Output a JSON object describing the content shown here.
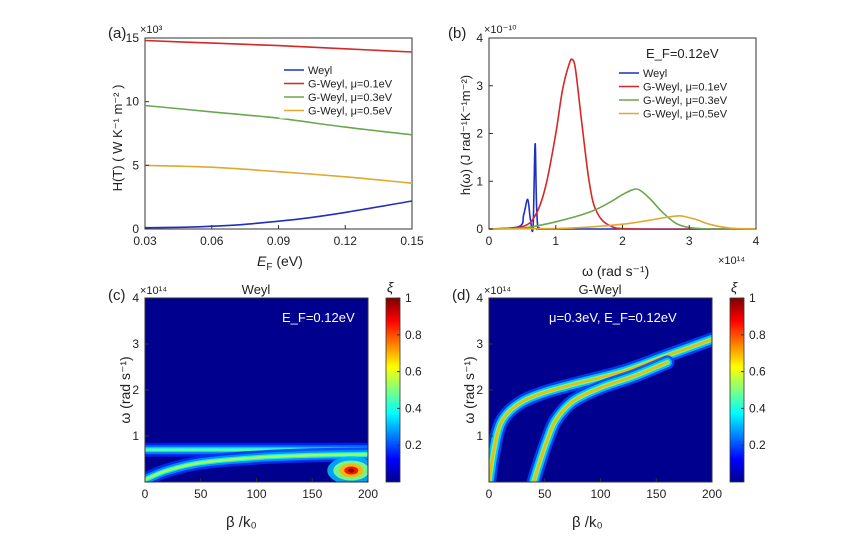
{
  "chart_data": [
    {
      "type": "line",
      "panel_label": "(a)",
      "y_exponent": "×10³",
      "xlabel_main": "E",
      "xlabel_sub": "F",
      "xlabel_rest": " (eV)",
      "ylabel": "H(T)  ( W K⁻¹ m⁻² )",
      "xlim": [
        0.03,
        0.15
      ],
      "ylim": [
        0,
        15
      ],
      "xticks": [
        "0.03",
        "0.06",
        "0.09",
        "0.12",
        "0.15"
      ],
      "yticks": [
        "0",
        "5",
        "10",
        "15"
      ],
      "legend_position": "top-right",
      "series": [
        {
          "name": "Weyl",
          "color": "#1f2fbf",
          "x": [
            0.03,
            0.05,
            0.07,
            0.08,
            0.1,
            0.12,
            0.15
          ],
          "y": [
            0.1,
            0.15,
            0.3,
            0.45,
            0.8,
            1.3,
            2.2
          ]
        },
        {
          "name": "G-Weyl, μ=0.1eV",
          "color": "#d62728",
          "x": [
            0.03,
            0.06,
            0.09,
            0.12,
            0.15
          ],
          "y": [
            14.8,
            14.6,
            14.4,
            14.15,
            13.9
          ]
        },
        {
          "name": "G-Weyl, μ=0.3eV",
          "color": "#6aa84f",
          "x": [
            0.03,
            0.06,
            0.09,
            0.12,
            0.15
          ],
          "y": [
            9.7,
            9.2,
            8.7,
            8.0,
            7.4
          ]
        },
        {
          "name": "G-Weyl, μ=0.5eV",
          "color": "#e0a830",
          "x": [
            0.03,
            0.06,
            0.09,
            0.12,
            0.15
          ],
          "y": [
            5.0,
            4.85,
            4.5,
            4.1,
            3.6
          ]
        }
      ]
    },
    {
      "type": "line",
      "panel_label": "(b)",
      "y_exponent": "×10⁻¹⁰",
      "x_exponent": "×10¹⁴",
      "xlabel": "ω (rad s⁻¹)",
      "ylabel": "h(ω)  (J rad⁻¹K⁻¹m⁻²)",
      "annotation": "E_F=0.12eV",
      "xlim": [
        0,
        4
      ],
      "ylim": [
        0,
        4
      ],
      "xticks": [
        "0",
        "1",
        "2",
        "3",
        "4"
      ],
      "yticks": [
        "0",
        "1",
        "2",
        "3",
        "4"
      ],
      "legend_position": "top-right",
      "series": [
        {
          "name": "Weyl",
          "color": "#1f2fbf",
          "x": [
            0,
            0.45,
            0.52,
            0.58,
            0.62,
            0.66,
            0.69,
            0.71,
            0.73,
            0.75,
            0.8,
            1.0,
            4.0
          ],
          "y": [
            0,
            0.05,
            0.3,
            0.62,
            0.2,
            0.05,
            1.78,
            0.6,
            0.05,
            0.02,
            0.0,
            0,
            0
          ]
        },
        {
          "name": "G-Weyl, μ=0.1eV",
          "color": "#d62728",
          "x": [
            0,
            0.5,
            0.7,
            0.85,
            1.0,
            1.1,
            1.2,
            1.25,
            1.3,
            1.4,
            1.5,
            1.6,
            1.8,
            2.2,
            4.0
          ],
          "y": [
            0,
            0.05,
            0.3,
            0.9,
            2.0,
            2.9,
            3.45,
            3.55,
            3.3,
            2.1,
            1.0,
            0.4,
            0.08,
            0.0,
            0
          ]
        },
        {
          "name": "G-Weyl, μ=0.3eV",
          "color": "#6aa84f",
          "x": [
            0,
            0.5,
            1.0,
            1.5,
            1.8,
            2.0,
            2.15,
            2.25,
            2.4,
            2.6,
            2.8,
            3.0,
            3.3,
            4.0
          ],
          "y": [
            0,
            0.02,
            0.15,
            0.35,
            0.55,
            0.72,
            0.82,
            0.82,
            0.65,
            0.35,
            0.12,
            0.03,
            0.0,
            0
          ]
        },
        {
          "name": "G-Weyl, μ=0.5eV",
          "color": "#e0a830",
          "x": [
            0,
            1.0,
            1.5,
            2.0,
            2.3,
            2.6,
            2.8,
            2.9,
            3.1,
            3.3,
            3.6,
            4.0
          ],
          "y": [
            0,
            0.01,
            0.04,
            0.1,
            0.16,
            0.23,
            0.27,
            0.27,
            0.2,
            0.1,
            0.02,
            0
          ]
        }
      ]
    },
    {
      "type": "heatmap",
      "panel_label": "(c)",
      "title": "Weyl",
      "annotation": "E_F=0.12eV",
      "y_exponent": "×10¹⁴",
      "xlabel": "β /k₀",
      "ylabel": "ω (rad s⁻¹)",
      "xlim": [
        0,
        200
      ],
      "ylim": [
        0,
        4
      ],
      "xticks": [
        "0",
        "50",
        "100",
        "150",
        "200"
      ],
      "yticks": [
        "1",
        "2",
        "3",
        "4"
      ],
      "colorbar_label": "ξ",
      "colorbar_ticks": [
        "0.2",
        "0.4",
        "0.6",
        "0.8",
        "1"
      ],
      "colorbar_range": [
        0,
        1
      ],
      "features": [
        {
          "kind": "line",
          "x": [
            0,
            200
          ],
          "y": [
            0.7,
            0.7
          ],
          "intensity": 0.5
        },
        {
          "kind": "curve",
          "x": [
            0,
            20,
            50,
            100,
            150,
            200
          ],
          "y": [
            0.05,
            0.25,
            0.42,
            0.53,
            0.58,
            0.6
          ],
          "intensity": 0.6
        },
        {
          "kind": "blob",
          "cx": 185,
          "cy": 0.25,
          "intensity": 1.0
        }
      ]
    },
    {
      "type": "heatmap",
      "panel_label": "(d)",
      "title": "G-Weyl",
      "annotation": "μ=0.3eV, E_F=0.12eV",
      "y_exponent": "×10¹⁴",
      "xlabel": "β /k₀",
      "ylabel": "ω (rad s⁻¹)",
      "xlim": [
        0,
        200
      ],
      "ylim": [
        0,
        4
      ],
      "xticks": [
        "0",
        "50",
        "100",
        "150",
        "200"
      ],
      "yticks": [
        "1",
        "2",
        "3",
        "4"
      ],
      "colorbar_label": "ξ",
      "colorbar_ticks": [
        "0.2",
        "0.4",
        "0.6",
        "0.8",
        "1"
      ],
      "colorbar_range": [
        0,
        1
      ],
      "features": [
        {
          "kind": "curve",
          "x": [
            0,
            3,
            8,
            15,
            30,
            50,
            80,
            120,
            160,
            200
          ],
          "y": [
            0,
            0.5,
            1.1,
            1.45,
            1.75,
            1.95,
            2.15,
            2.4,
            2.75,
            3.1
          ],
          "intensity": 0.8
        },
        {
          "kind": "curve",
          "x": [
            40,
            45,
            52,
            60,
            75,
            100,
            130,
            160
          ],
          "y": [
            0,
            0.4,
            0.9,
            1.35,
            1.75,
            2.05,
            2.3,
            2.6
          ],
          "intensity": 0.8
        }
      ]
    }
  ]
}
